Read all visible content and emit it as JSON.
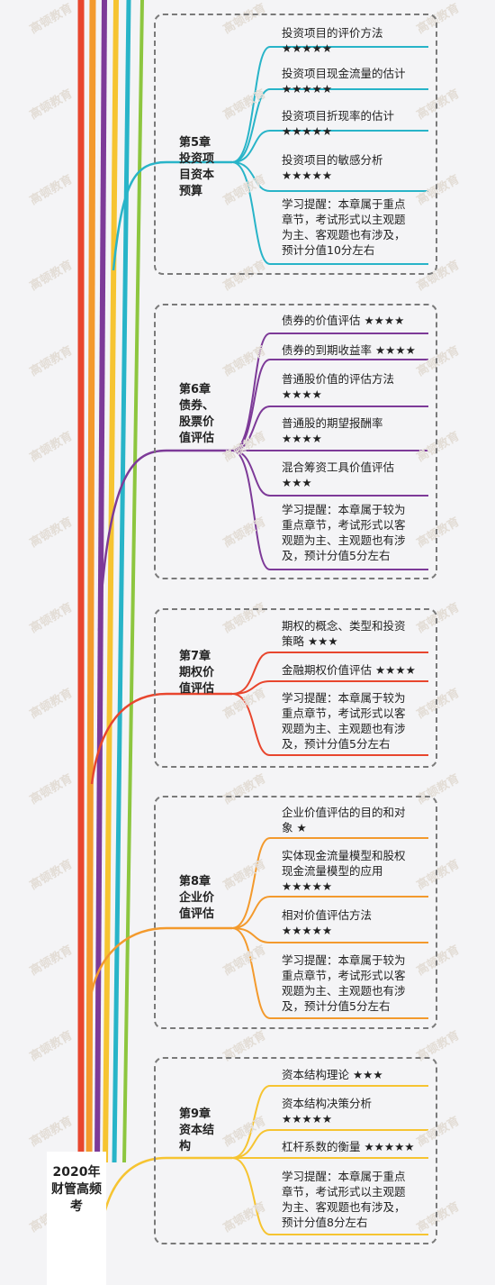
{
  "title": "2020年财管高频考",
  "watermark": "高顿教育",
  "chapters": [
    {
      "label": "第5章\n投资项\n目资本\n预算",
      "color": "#28b4c8",
      "items": [
        "投资项目的评价方法\n★★★★★",
        "投资项目现金流量的估计\n★★★★★",
        "投资项目折现率的估计\n★★★★★",
        "投资项目的敏感分析\n★★★★★",
        "学习提醒：本章属于重点\n章节，考试形式以主观题\n为主、客观题也有涉及，\n预计分值10分左右"
      ]
    },
    {
      "label": "第6章\n债券、\n股票价\n值评估",
      "color": "#7d3a98",
      "items": [
        "债券的价值评估 ★★★★",
        "债券的到期收益率 ★★★★",
        "普通股价值的评估方法\n★★★★",
        "普通股的期望报酬率\n★★★★",
        "混合筹资工具价值评估\n★★★",
        "学习提醒：本章属于较为\n重点章节，考试形式以客\n观题为主、主观题也有涉\n及，预计分值5分左右"
      ]
    },
    {
      "label": "第7章\n期权价\n值评估",
      "color": "#e8462e",
      "items": [
        "期权的概念、类型和投资\n策略 ★★★",
        "金融期权价值评估 ★★★★",
        "学习提醒：本章属于较为\n重点章节，考试形式以客\n观题为主、主观题也有涉\n及，预计分值5分左右"
      ]
    },
    {
      "label": "第8章\n企业价\n值评估",
      "color": "#f39a2d",
      "items": [
        "企业价值评估的目的和对\n象 ★",
        "实体现金流量模型和股权\n现金流量模型的应用\n★★★★★",
        "相对价值评估方法\n★★★★★",
        "学习提醒：本章属于较为\n重点章节，考试形式以客\n观题为主、主观题也有涉\n及，预计分值5分左右"
      ]
    },
    {
      "label": "第9章\n资本结\n构",
      "color": "#f6c431",
      "items": [
        "资本结构理论 ★★★",
        "资本结构决策分析\n★★★★★",
        "杠杆系数的衡量 ★★★★★",
        "学习提醒：本章属于重点\n章节，考试形式以主观题\n为主、客观题也有涉及，\n预计分值8分左右"
      ]
    }
  ]
}
